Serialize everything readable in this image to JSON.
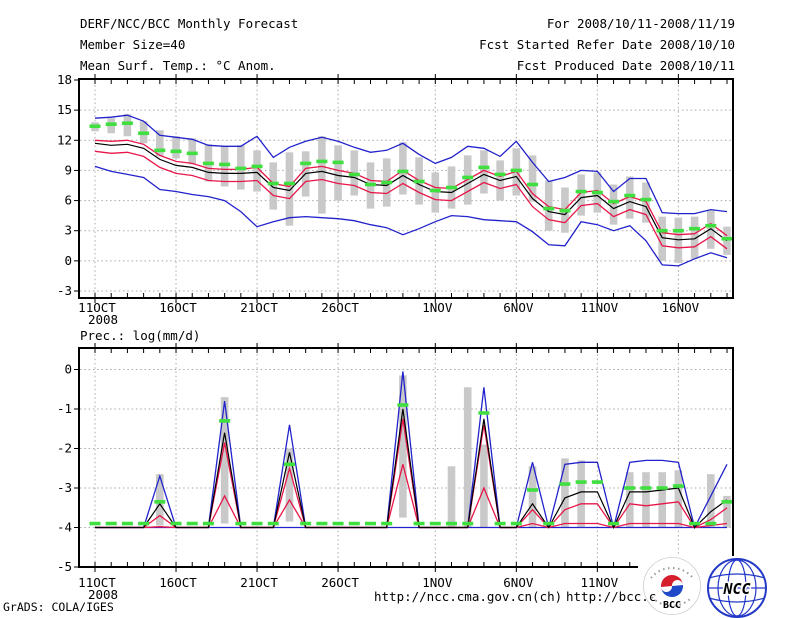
{
  "header": {
    "title": "DERF/NCC/BCC Monthly Forecast",
    "member_size": "Member Size=40",
    "for_range": "For 2008/10/11-2008/11/19",
    "refer_date": "Fcst Started Refer Date 2008/10/10",
    "produced_date": "Fcst Produced Date 2008/10/11"
  },
  "footer": {
    "grads_credit": "GrADS: COLA/IGES",
    "url_ncc": "http://ncc.cma.gov.cn(ch)",
    "url_bcc": "http://bcc.c",
    "logo_bcc_label": "BCC",
    "logo_ncc_label": "NCC"
  },
  "colors": {
    "blue": "#2222cc",
    "red": "#e8174a",
    "black": "#000000",
    "green": "#3fdf3f",
    "gray_bar": "#c9c9c9",
    "grid": "#a9a9a9",
    "axis": "#000000"
  },
  "chart_data": [
    {
      "type": "line",
      "title": "Mean Surf. Temp.: °C Anom.",
      "ylabel": "°C anomaly",
      "ylim": [
        -3,
        18
      ],
      "yticks": [
        18,
        15,
        12,
        9,
        6,
        3,
        0,
        -3
      ],
      "n_days": 40,
      "grid": true,
      "xticks": [
        {
          "day": 1,
          "label": "11OCT",
          "sublabel": "2008"
        },
        {
          "day": 6,
          "label": "16OCT"
        },
        {
          "day": 11,
          "label": "21OCT"
        },
        {
          "day": 16,
          "label": "26OCT"
        },
        {
          "day": 22,
          "label": "1NOV"
        },
        {
          "day": 27,
          "label": "6NOV"
        },
        {
          "day": 32,
          "label": "11NOV"
        },
        {
          "day": 37,
          "label": "16NOV"
        }
      ],
      "series": [
        {
          "name": "ensemble-max",
          "color": "blue",
          "values": [
            14.2,
            14.3,
            14.5,
            13.9,
            12.5,
            12.3,
            12.1,
            11.5,
            11.4,
            11.4,
            12.4,
            10.3,
            11.3,
            11.9,
            12.3,
            11.9,
            11.3,
            10.8,
            11.0,
            11.7,
            10.6,
            9.7,
            10.3,
            11.4,
            11.2,
            10.4,
            11.9,
            9.8,
            7.9,
            8.3,
            9.0,
            8.9,
            6.9,
            8.2,
            8.2,
            4.8,
            4.7,
            4.7,
            5.1,
            4.9
          ]
        },
        {
          "name": "ensemble-upper-quartile",
          "color": "red",
          "values": [
            12.0,
            11.9,
            12.0,
            11.6,
            10.5,
            9.9,
            9.7,
            9.2,
            9.1,
            9.1,
            9.3,
            7.7,
            7.4,
            9.2,
            9.4,
            9.0,
            8.7,
            8.0,
            7.9,
            9.0,
            8.0,
            7.3,
            7.2,
            8.1,
            9.0,
            8.4,
            8.9,
            6.7,
            5.4,
            5.1,
            6.8,
            7.0,
            5.7,
            6.4,
            5.9,
            2.8,
            2.6,
            2.7,
            3.7,
            2.5
          ]
        },
        {
          "name": "ensemble-mean",
          "color": "black",
          "values": [
            11.7,
            11.5,
            11.6,
            11.2,
            10.1,
            9.5,
            9.3,
            8.8,
            8.7,
            8.7,
            8.8,
            7.3,
            7.0,
            8.7,
            8.9,
            8.5,
            8.3,
            7.6,
            7.5,
            8.5,
            7.6,
            6.9,
            6.8,
            7.7,
            8.6,
            8.0,
            8.4,
            6.2,
            4.9,
            4.6,
            6.3,
            6.5,
            5.2,
            5.9,
            5.4,
            2.3,
            2.1,
            2.2,
            3.2,
            2.0
          ]
        },
        {
          "name": "ensemble-lower-quartile",
          "color": "red",
          "values": [
            10.9,
            10.7,
            10.8,
            10.4,
            9.3,
            8.7,
            8.5,
            8.0,
            7.9,
            7.9,
            8.0,
            6.5,
            6.2,
            7.9,
            8.1,
            7.7,
            7.5,
            6.8,
            6.7,
            7.7,
            6.8,
            6.1,
            6.0,
            6.9,
            7.8,
            7.2,
            7.6,
            5.4,
            4.1,
            3.8,
            5.5,
            5.7,
            4.4,
            5.1,
            4.6,
            1.5,
            1.3,
            1.4,
            2.4,
            1.2
          ]
        },
        {
          "name": "ensemble-min",
          "color": "blue",
          "values": [
            9.4,
            8.9,
            8.6,
            8.3,
            7.1,
            6.9,
            6.6,
            6.4,
            6.0,
            4.9,
            3.4,
            3.9,
            4.3,
            4.4,
            4.3,
            4.2,
            4.0,
            3.6,
            3.3,
            2.6,
            3.2,
            3.9,
            4.5,
            4.4,
            4.1,
            4.0,
            3.9,
            2.9,
            1.6,
            1.5,
            3.9,
            3.6,
            3.0,
            3.5,
            2.0,
            -0.4,
            -0.5,
            0.2,
            0.8,
            0.3
          ]
        }
      ],
      "green_dash_values": [
        13.4,
        13.6,
        13.7,
        12.7,
        11.0,
        10.9,
        10.7,
        9.7,
        9.6,
        9.2,
        9.4,
        7.7,
        7.7,
        9.7,
        9.9,
        9.8,
        8.6,
        7.6,
        7.8,
        8.9,
        7.9,
        7.0,
        7.3,
        8.3,
        9.3,
        8.6,
        9.0,
        7.6,
        5.2,
        5.0,
        6.9,
        6.8,
        5.9,
        6.5,
        6.1,
        3.0,
        3.0,
        3.2,
        3.5,
        2.2
      ],
      "spread_bars": [
        [
          12.9,
          13.8
        ],
        [
          12.7,
          14.2
        ],
        [
          12.4,
          14.6
        ],
        [
          11.7,
          13.9
        ],
        [
          10.4,
          13.0
        ],
        [
          10.2,
          12.4
        ],
        [
          9.6,
          12.2
        ],
        [
          7.9,
          11.6
        ],
        [
          7.4,
          11.4
        ],
        [
          7.1,
          11.5
        ],
        [
          6.9,
          11.0
        ],
        [
          5.1,
          9.8
        ],
        [
          3.5,
          10.8
        ],
        [
          6.4,
          10.9
        ],
        [
          4.7,
          12.4
        ],
        [
          6.0,
          11.5
        ],
        [
          6.5,
          11.0
        ],
        [
          5.2,
          9.8
        ],
        [
          5.4,
          10.2
        ],
        [
          6.6,
          11.8
        ],
        [
          5.6,
          10.3
        ],
        [
          4.8,
          8.8
        ],
        [
          5.2,
          9.4
        ],
        [
          5.6,
          10.5
        ],
        [
          6.7,
          11.0
        ],
        [
          6.0,
          10.0
        ],
        [
          6.5,
          11.2
        ],
        [
          5.9,
          10.5
        ],
        [
          3.0,
          8.0
        ],
        [
          2.8,
          7.3
        ],
        [
          4.5,
          8.6
        ],
        [
          4.8,
          8.8
        ],
        [
          3.6,
          7.6
        ],
        [
          4.2,
          8.4
        ],
        [
          3.8,
          7.8
        ],
        [
          0.0,
          4.4
        ],
        [
          -0.2,
          4.3
        ],
        [
          0.2,
          4.4
        ],
        [
          1.2,
          5.0
        ],
        [
          0.6,
          3.4
        ]
      ]
    },
    {
      "type": "line",
      "title": "Prec.: log(mm/d)",
      "ylabel": "log(mm/d)",
      "ylim": [
        -5,
        0.55
      ],
      "yticks": [
        0,
        -1,
        -2,
        -3,
        -4,
        -5
      ],
      "n_days": 40,
      "grid": true,
      "xticks": [
        {
          "day": 1,
          "label": "11OCT",
          "sublabel": "2008"
        },
        {
          "day": 6,
          "label": "16OCT"
        },
        {
          "day": 11,
          "label": "21OCT"
        },
        {
          "day": 16,
          "label": "26OCT"
        },
        {
          "day": 22,
          "label": "1NOV"
        },
        {
          "day": 27,
          "label": "6NOV"
        },
        {
          "day": 32,
          "label": "11NOV"
        },
        {
          "day": 37,
          "label": "16NOV"
        }
      ],
      "series": [
        {
          "name": "ensemble-max",
          "color": "blue",
          "values": [
            -4,
            -4,
            -4,
            -4,
            -2.7,
            -4,
            -4,
            -4,
            -0.8,
            -4,
            -4,
            -4,
            -1.4,
            -4,
            -4,
            -4,
            -4,
            -4,
            -4,
            -0.05,
            -4,
            -4,
            -4,
            -4,
            -0.45,
            -4,
            -4,
            -2.35,
            -4,
            -2.4,
            -2.35,
            -2.35,
            -4,
            -2.35,
            -2.3,
            -2.3,
            -2.35,
            -4,
            -3.2,
            -2.4
          ]
        },
        {
          "name": "ensemble-upper-quartile",
          "color": "red",
          "values": [
            -4,
            -4,
            -4,
            -4,
            -3.7,
            -4,
            -4,
            -4,
            -1.85,
            -4,
            -4,
            -4,
            -2.5,
            -4,
            -4,
            -4,
            -4,
            -4,
            -4,
            -1.25,
            -4,
            -4,
            -4,
            -4,
            -1.4,
            -4,
            -4,
            -3.55,
            -4,
            -3.55,
            -3.4,
            -3.4,
            -4,
            -3.4,
            -3.45,
            -3.4,
            -3.35,
            -4,
            -3.8,
            -3.5
          ]
        },
        {
          "name": "ensemble-mean",
          "color": "black",
          "values": [
            -4,
            -4,
            -4,
            -4,
            -3.4,
            -4,
            -4,
            -4,
            -1.6,
            -4,
            -4,
            -4,
            -2.1,
            -4,
            -4,
            -4,
            -4,
            -4,
            -4,
            -1.0,
            -4,
            -4,
            -4,
            -4,
            -1.25,
            -4,
            -4,
            -3.4,
            -4,
            -3.25,
            -3.1,
            -3.1,
            -4,
            -3.1,
            -3.1,
            -3.05,
            -3.0,
            -4,
            -3.6,
            -3.3
          ]
        },
        {
          "name": "ensemble-lower-quartile",
          "color": "red",
          "values": [
            -4,
            -4,
            -4,
            -4,
            -3.98,
            -4,
            -4,
            -4,
            -3.2,
            -4,
            -4,
            -4,
            -3.3,
            -4,
            -4,
            -4,
            -4,
            -4,
            -4,
            -2.4,
            -4,
            -4,
            -4,
            -4,
            -3.0,
            -4,
            -4,
            -3.9,
            -4,
            -3.9,
            -3.9,
            -3.9,
            -4,
            -3.9,
            -3.9,
            -3.9,
            -3.9,
            -4,
            -3.95,
            -3.9
          ]
        },
        {
          "name": "ensemble-min",
          "color": "blue",
          "values": [
            -4,
            -4,
            -4,
            -4,
            -4,
            -4,
            -4,
            -4,
            -4,
            -4,
            -4,
            -4,
            -4,
            -4,
            -4,
            -4,
            -4,
            -4,
            -4,
            -4,
            -4,
            -4,
            -4,
            -4,
            -4,
            -4,
            -4,
            -4,
            -4,
            -4,
            -4,
            -4,
            -4,
            -4,
            -4,
            -4,
            -4,
            -4,
            -4,
            -4
          ]
        }
      ],
      "green_dash_values": [
        -3.9,
        -3.9,
        -3.9,
        -3.9,
        -3.35,
        -3.9,
        -3.9,
        -3.9,
        -1.3,
        -3.9,
        -3.9,
        -3.9,
        -2.4,
        -3.9,
        -3.9,
        -3.9,
        -3.9,
        -3.9,
        -3.9,
        -0.9,
        -3.9,
        -3.9,
        -3.9,
        -3.9,
        -1.1,
        -3.9,
        -3.9,
        -3.05,
        -3.9,
        -2.9,
        -2.85,
        -2.85,
        -3.9,
        -3.0,
        -3.0,
        -3.0,
        -2.95,
        -3.9,
        -3.9,
        -3.35
      ],
      "spread_bars": [
        null,
        null,
        null,
        null,
        [
          -3.95,
          -2.65
        ],
        null,
        null,
        null,
        [
          -3.9,
          -0.7
        ],
        null,
        null,
        null,
        [
          -3.85,
          -2.0
        ],
        null,
        null,
        null,
        null,
        null,
        null,
        [
          -3.75,
          -0.15
        ],
        null,
        null,
        [
          -4,
          -2.45
        ],
        [
          -4,
          -0.45
        ],
        [
          -4,
          -1.9
        ],
        null,
        null,
        [
          -4,
          -2.45
        ],
        null,
        [
          -4,
          -2.25
        ],
        [
          -4,
          -2.3
        ],
        null,
        null,
        [
          -4,
          -2.6
        ],
        [
          -4,
          -2.6
        ],
        [
          -4,
          -2.6
        ],
        [
          -4,
          -2.55
        ],
        null,
        [
          -4,
          -2.65
        ],
        [
          -4,
          -3.2
        ]
      ]
    }
  ]
}
